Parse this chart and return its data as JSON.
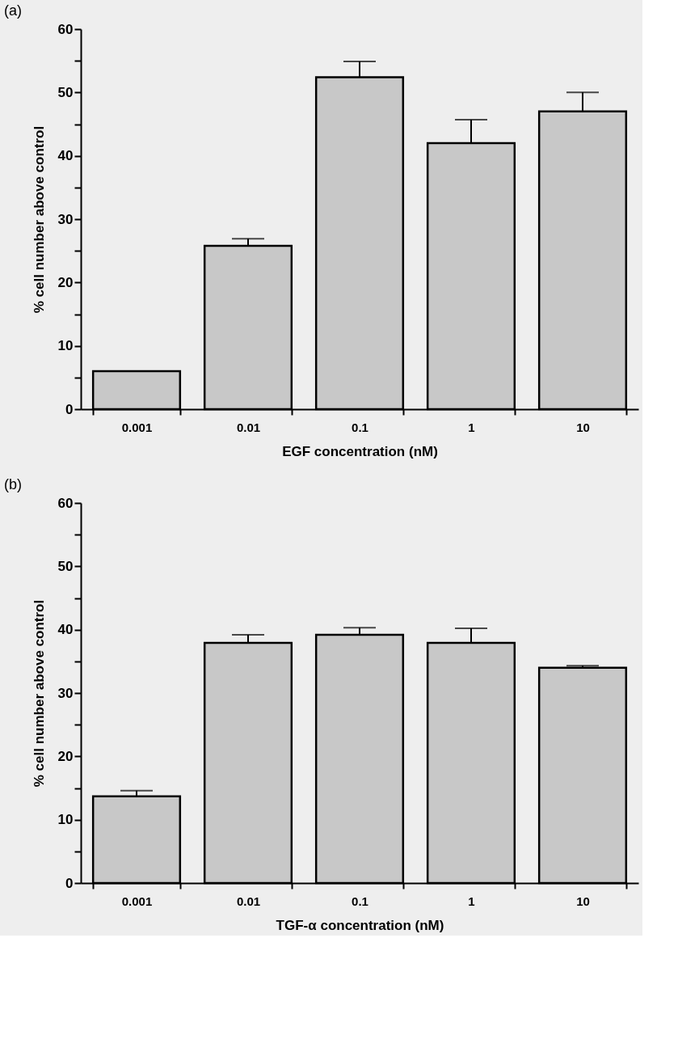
{
  "chart_data": [
    {
      "type": "bar",
      "title": "(a)",
      "xlabel": "EGF concentration (nM)",
      "ylabel": "% cell number above control",
      "categories": [
        "0.001",
        "0.01",
        "0.1",
        "1",
        "10"
      ],
      "values": [
        6,
        25.8,
        52.4,
        42,
        47
      ],
      "errors": [
        null,
        1.1,
        2.5,
        3.7,
        3
      ],
      "color": "#c8c8c8",
      "ylim": [
        0,
        60
      ],
      "yticks": [
        0,
        {
          "value": 5,
          "label": null
        },
        10,
        {
          "value": 15,
          "label": null
        },
        20,
        {
          "value": 25,
          "label": null
        },
        30,
        {
          "value": 35,
          "label": null
        },
        40,
        {
          "value": 45,
          "label": null
        },
        50,
        {
          "value": 55,
          "label": null
        },
        60
      ],
      "grid": false
    },
    {
      "type": "bar",
      "title": "(b)",
      "xlabel": "TGF-α concentration (nM)",
      "ylabel": "% cell number above control",
      "categories": [
        "0.001",
        "0.01",
        "0.1",
        "1",
        "10"
      ],
      "values": [
        13.7,
        37.9,
        39.2,
        37.9,
        34
      ],
      "errors": [
        0.9,
        1.3,
        1.1,
        2.3,
        0.3
      ],
      "color": "#c8c8c8",
      "ylim": [
        0,
        60
      ],
      "yticks": [
        0,
        {
          "value": 5,
          "label": null
        },
        10,
        {
          "value": 15,
          "label": null
        },
        20,
        {
          "value": 25,
          "label": null
        },
        30,
        {
          "value": 35,
          "label": null
        },
        40,
        {
          "value": 45,
          "label": null
        },
        50,
        {
          "value": 55,
          "label": null
        },
        60
      ],
      "grid": false
    }
  ]
}
